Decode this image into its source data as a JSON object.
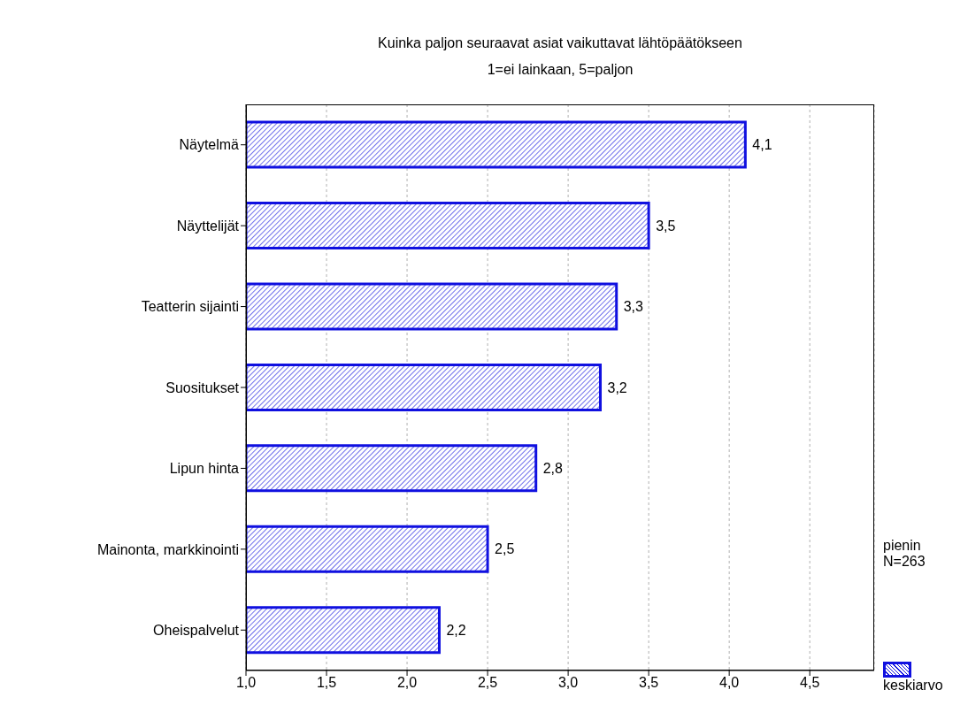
{
  "chart_data": {
    "type": "bar",
    "orientation": "horizontal",
    "title": "Kuinka paljon seuraavat asiat vaikuttavat lähtöpäätökseen",
    "subtitle": "1=ei lainkaan, 5=paljon",
    "categories": [
      "Näytelmä",
      "Näyttelijät",
      "Teatterin sijainti",
      "Suositukset",
      "Lipun hinta",
      "Mainonta, markkinointi",
      "Oheispalvelut"
    ],
    "series": [
      {
        "name": "keskiarvo",
        "color": "#1010e0",
        "values": [
          4.1,
          3.5,
          3.3,
          3.2,
          2.8,
          2.5,
          2.2
        ],
        "value_labels": [
          "4,1",
          "3,5",
          "3,3",
          "3,2",
          "2,8",
          "2,5",
          "2,2"
        ]
      }
    ],
    "xlim": [
      1,
      4.9
    ],
    "xticks": [
      {
        "value": 1,
        "label": "1,0"
      },
      {
        "value": 1.5,
        "label": "1,5"
      },
      {
        "value": 2,
        "label": "2,0"
      },
      {
        "value": 2.5,
        "label": "2,5"
      },
      {
        "value": 3,
        "label": "3,0"
      },
      {
        "value": 3.5,
        "label": "3,5"
      },
      {
        "value": 4,
        "label": "4,0"
      },
      {
        "value": 4.5,
        "label": "4,5"
      }
    ],
    "grid": "x",
    "legend": "bottom right",
    "annotations": [
      "pienin N=263"
    ]
  }
}
